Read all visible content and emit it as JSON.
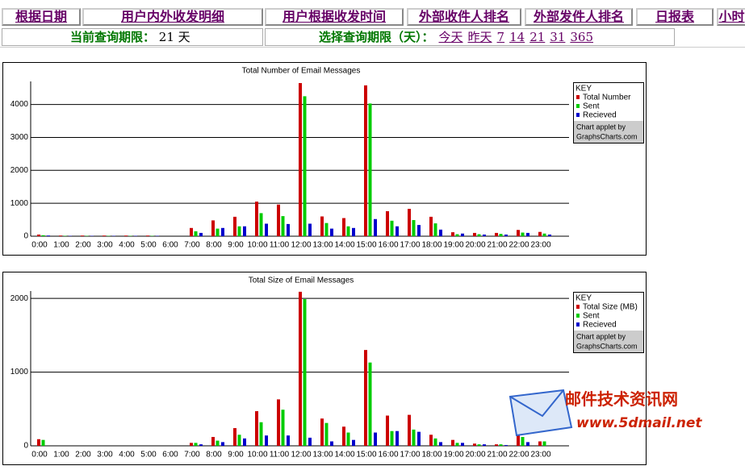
{
  "nav": [
    "根据日期",
    "用户内外收发明细",
    "用户根据收发时间",
    "外部收件人排名",
    "外部发件人排名",
    "日报表",
    "小时"
  ],
  "period": {
    "label": "当前查询期限：",
    "days": 21,
    "unit": "天"
  },
  "select": {
    "label": "选择查询期限（天）：",
    "options": [
      "今天",
      "昨天",
      "7",
      "14",
      "21",
      "31",
      "365"
    ]
  },
  "watermark": {
    "title": "邮件技术资讯网",
    "url": "www.5dmail.net"
  },
  "chart_data": [
    {
      "type": "bar",
      "title": "Total Number of Email Messages",
      "categories": [
        "0:00",
        "1:00",
        "2:00",
        "3:00",
        "4:00",
        "5:00",
        "6:00",
        "7:00",
        "8:00",
        "9:00",
        "10:00",
        "11:00",
        "12:00",
        "13:00",
        "14:00",
        "15:00",
        "16:00",
        "17:00",
        "18:00",
        "19:00",
        "20:00",
        "21:00",
        "22:00",
        "23:00"
      ],
      "legend_title": "KEY",
      "credit": [
        "Chart applet by",
        "GraphsCharts.com"
      ],
      "series": [
        {
          "name": "Total Number",
          "color": "#cc0000",
          "values": [
            50,
            20,
            20,
            20,
            20,
            20,
            0,
            250,
            480,
            590,
            1050,
            960,
            4650,
            600,
            550,
            4580,
            760,
            830,
            590,
            120,
            100,
            100,
            190,
            130
          ]
        },
        {
          "name": "Sent",
          "color": "#00cc00",
          "values": [
            30,
            10,
            10,
            10,
            10,
            10,
            0,
            150,
            230,
            300,
            700,
            610,
            4250,
            400,
            300,
            4030,
            470,
            490,
            390,
            60,
            60,
            70,
            110,
            80
          ]
        },
        {
          "name": "Recieved",
          "color": "#0000cc",
          "values": [
            20,
            10,
            10,
            10,
            10,
            10,
            0,
            100,
            250,
            300,
            380,
            370,
            380,
            230,
            250,
            520,
            300,
            340,
            200,
            80,
            50,
            50,
            100,
            50
          ]
        }
      ],
      "ylim": [
        0,
        4700
      ],
      "yticks": [
        0,
        1000,
        2000,
        3000,
        4000
      ],
      "grid": true
    },
    {
      "type": "bar",
      "title": "Total Size of Email Messages",
      "categories": [
        "0:00",
        "1:00",
        "2:00",
        "3:00",
        "4:00",
        "5:00",
        "6:00",
        "7:00",
        "8:00",
        "9:00",
        "10:00",
        "11:00",
        "12:00",
        "13:00",
        "14:00",
        "15:00",
        "16:00",
        "17:00",
        "18:00",
        "19:00",
        "20:00",
        "21:00",
        "22:00",
        "23:00"
      ],
      "legend_title": "KEY",
      "credit": [
        "Chart applet by",
        "GraphsCharts.com"
      ],
      "series": [
        {
          "name": "Total Size (MB)",
          "color": "#cc0000",
          "values": [
            90,
            0,
            0,
            0,
            0,
            0,
            0,
            40,
            120,
            240,
            470,
            630,
            2090,
            370,
            260,
            1300,
            410,
            420,
            150,
            80,
            30,
            20,
            170,
            60
          ]
        },
        {
          "name": "Sent",
          "color": "#00cc00",
          "values": [
            80,
            0,
            0,
            0,
            0,
            0,
            0,
            40,
            70,
            150,
            320,
            490,
            1990,
            310,
            180,
            1130,
            200,
            220,
            100,
            40,
            20,
            20,
            120,
            60
          ]
        },
        {
          "name": "Recieved",
          "color": "#0000cc",
          "values": [
            0,
            0,
            0,
            0,
            0,
            0,
            0,
            20,
            50,
            100,
            140,
            140,
            110,
            60,
            80,
            180,
            200,
            190,
            50,
            40,
            20,
            10,
            50,
            0
          ]
        }
      ],
      "ylim": [
        0,
        2100
      ],
      "yticks": [
        0,
        1000,
        2000
      ],
      "grid": true
    }
  ]
}
